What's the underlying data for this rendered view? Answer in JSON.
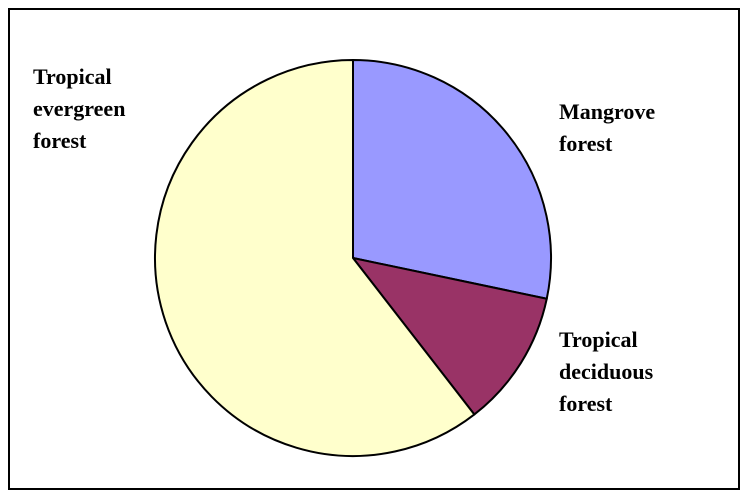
{
  "chart_data": {
    "type": "pie",
    "title": "",
    "slices": [
      {
        "label_lines": [
          "Mangrove",
          "forest"
        ],
        "value": 28.3,
        "color": "#9999FF"
      },
      {
        "label_lines": [
          "Tropical",
          "deciduous",
          "forest"
        ],
        "value": 11.2,
        "color": "#993366"
      },
      {
        "label_lines": [
          "Tropical",
          "evergreen",
          "forest"
        ],
        "value": 60.5,
        "color": "#FFFFCC"
      }
    ],
    "start_angle_deg": 0,
    "direction": "clockwise",
    "legend": "none",
    "outline_color": "#000000"
  }
}
